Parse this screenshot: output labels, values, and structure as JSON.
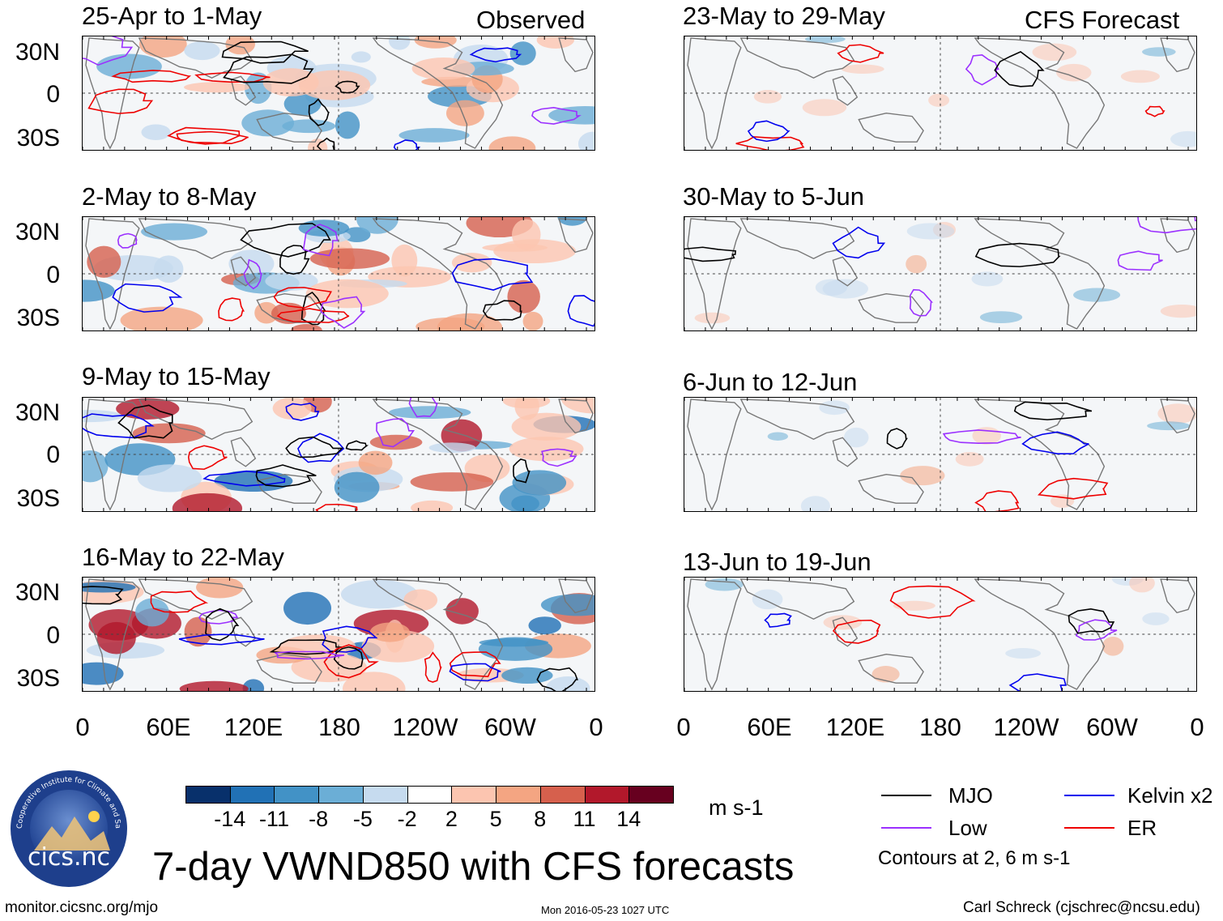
{
  "observed_label": "Observed",
  "forecast_label": "CFS Forecast",
  "observed_panels": [
    {
      "title": "25-Apr to 1-May"
    },
    {
      "title": "2-May to 8-May"
    },
    {
      "title": "9-May to 15-May"
    },
    {
      "title": "16-May to 22-May"
    }
  ],
  "forecast_panels": [
    {
      "title": "23-May to 29-May"
    },
    {
      "title": "30-May to 5-Jun"
    },
    {
      "title": "6-Jun to 12-Jun"
    },
    {
      "title": "13-Jun to 19-Jun"
    }
  ],
  "lat_labels": [
    "30N",
    "0",
    "30S"
  ],
  "lon_labels": [
    "0",
    "60E",
    "120E",
    "180",
    "120W",
    "60W",
    "0"
  ],
  "colorbar": {
    "colors": [
      "#08306b",
      "#2171b5",
      "#4292c6",
      "#6baed6",
      "#c6dbef",
      "#ffffff",
      "#fcc5b0",
      "#f4a582",
      "#d6604d",
      "#b2182b",
      "#67001f"
    ],
    "ticks": [
      "-14",
      "-11",
      "-8",
      "-5",
      "-2",
      "2",
      "5",
      "8",
      "11",
      "14"
    ],
    "units": "m s-1"
  },
  "legend": {
    "items": [
      {
        "label": "MJO",
        "color": "#000000"
      },
      {
        "label": "Kelvin x2",
        "color": "#0000ee"
      },
      {
        "label": "Low",
        "color": "#9b30ff"
      },
      {
        "label": "ER",
        "color": "#ee0000"
      }
    ],
    "note": "Contours at 2, 6 m s-1"
  },
  "logo_text": "cics.nc",
  "logo_ring_text": "Cooperative Institute for Climate and Satellites",
  "main_title": "7-day VWND850 with CFS forecasts",
  "footer": {
    "url": "monitor.cicsnc.org/mjo",
    "timestamp": "Mon 2016-05-23 1027 UTC",
    "author": "Carl Schreck (cjschrec@ncsu.edu)"
  }
}
